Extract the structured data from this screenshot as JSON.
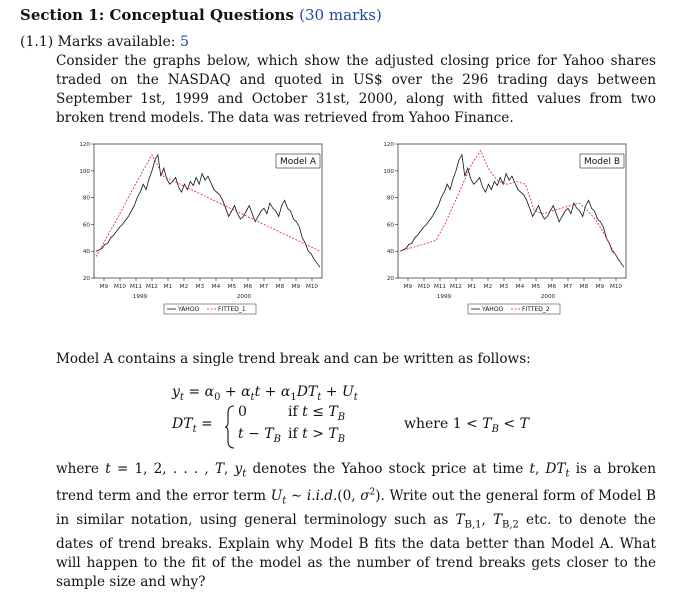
{
  "section": {
    "title": "Section 1: Conceptual Questions",
    "marks": "(30 marks)"
  },
  "question": {
    "number": "(1.1)",
    "marks_label": "Marks available:",
    "marks_value": "5",
    "intro": "Consider the graphs below, which show the adjusted closing price for Yahoo shares traded on the NASDAQ and quoted in US$ over the 296 trading days between September 1st, 1999 and October 31st, 2000, along with fitted values from two broken trend models. The data was retrieved from Yahoo Finance.",
    "model_a_text": "Model A contains a single trend break and can be written as follows:",
    "where_text": "where 1 < T",
    "eq1": "y_t = α_0 + α_t t + α_1 DT_t + U_t",
    "dt_lhs": "DT_t =",
    "case1_val": "0",
    "case1_cond": "if t ≤ T_B",
    "case2_val": "t − T_B",
    "case2_cond": "if t > T_B",
    "closing": "where t = 1, 2, . . . , T, y_t denotes the Yahoo stock price at time t, DT_t is a broken trend term and the error term U_t ∼ i.i.d.(0, σ²). Write out the general form of Model B in similar notation, using general terminology such as T_B,1, T_B,2 etc. to denote the dates of trend breaks. Explain why Model B fits the data better than Model A. What will happen to the fit of the model as the number of trend breaks gets closer to the sample size and why?"
  },
  "chart_data": [
    {
      "type": "line",
      "label": "Model A",
      "x_ticks": [
        "M9",
        "M10",
        "M11",
        "M12",
        "M1",
        "M2",
        "M3",
        "M4",
        "M5",
        "M6",
        "M7",
        "M8",
        "M9",
        "M10"
      ],
      "year_labels": [
        "1999",
        "2000"
      ],
      "y_ticks": [
        20,
        40,
        60,
        80,
        100,
        120
      ],
      "ylim": [
        20,
        120
      ],
      "series": [
        {
          "name": "YAHOO",
          "values": [
            40,
            41,
            42,
            45,
            46,
            50,
            52,
            55,
            58,
            60,
            63,
            66,
            70,
            74,
            80,
            84,
            90,
            86,
            94,
            100,
            108,
            112,
            96,
            102,
            94,
            90,
            92,
            95,
            88,
            84,
            90,
            86,
            92,
            89,
            95,
            90,
            98,
            93,
            96,
            91,
            86,
            84,
            82,
            78,
            72,
            66,
            70,
            74,
            68,
            64,
            66,
            70,
            74,
            68,
            62,
            66,
            70,
            72,
            68,
            76,
            72,
            70,
            66,
            74,
            78,
            72,
            70,
            64,
            62,
            58,
            50,
            46,
            40,
            38,
            34,
            31,
            28
          ]
        },
        {
          "name": "FITTED_1",
          "values": [
            36,
            51,
            66,
            82,
            97,
            112,
            96,
            92,
            88,
            84,
            80,
            76,
            72,
            68,
            64,
            60,
            56,
            52,
            48,
            44,
            40
          ]
        }
      ]
    },
    {
      "type": "line",
      "label": "Model B",
      "x_ticks": [
        "M9",
        "M10",
        "M11",
        "M12",
        "M1",
        "M2",
        "M3",
        "M4",
        "M5",
        "M6",
        "M7",
        "M8",
        "M9",
        "M10"
      ],
      "year_labels": [
        "1999",
        "2000"
      ],
      "y_ticks": [
        20,
        40,
        60,
        80,
        100,
        120
      ],
      "ylim": [
        20,
        120
      ],
      "series": [
        {
          "name": "YAHOO",
          "values": [
            40,
            41,
            42,
            45,
            46,
            50,
            52,
            55,
            58,
            60,
            63,
            66,
            70,
            74,
            80,
            84,
            90,
            86,
            94,
            100,
            108,
            112,
            96,
            102,
            94,
            90,
            92,
            95,
            88,
            84,
            90,
            86,
            92,
            89,
            95,
            90,
            98,
            93,
            96,
            91,
            86,
            84,
            82,
            78,
            72,
            66,
            70,
            74,
            68,
            64,
            66,
            70,
            74,
            68,
            62,
            66,
            70,
            72,
            68,
            76,
            72,
            70,
            66,
            74,
            78,
            72,
            70,
            64,
            62,
            58,
            50,
            46,
            40,
            38,
            34,
            31,
            28
          ]
        },
        {
          "name": "FITTED_2",
          "values": [
            40,
            42,
            44,
            46,
            48,
            60,
            75,
            90,
            105,
            115,
            100,
            92,
            90,
            92,
            90,
            70,
            68,
            70,
            72,
            74,
            76,
            70,
            62,
            50,
            38,
            28
          ]
        }
      ]
    }
  ]
}
